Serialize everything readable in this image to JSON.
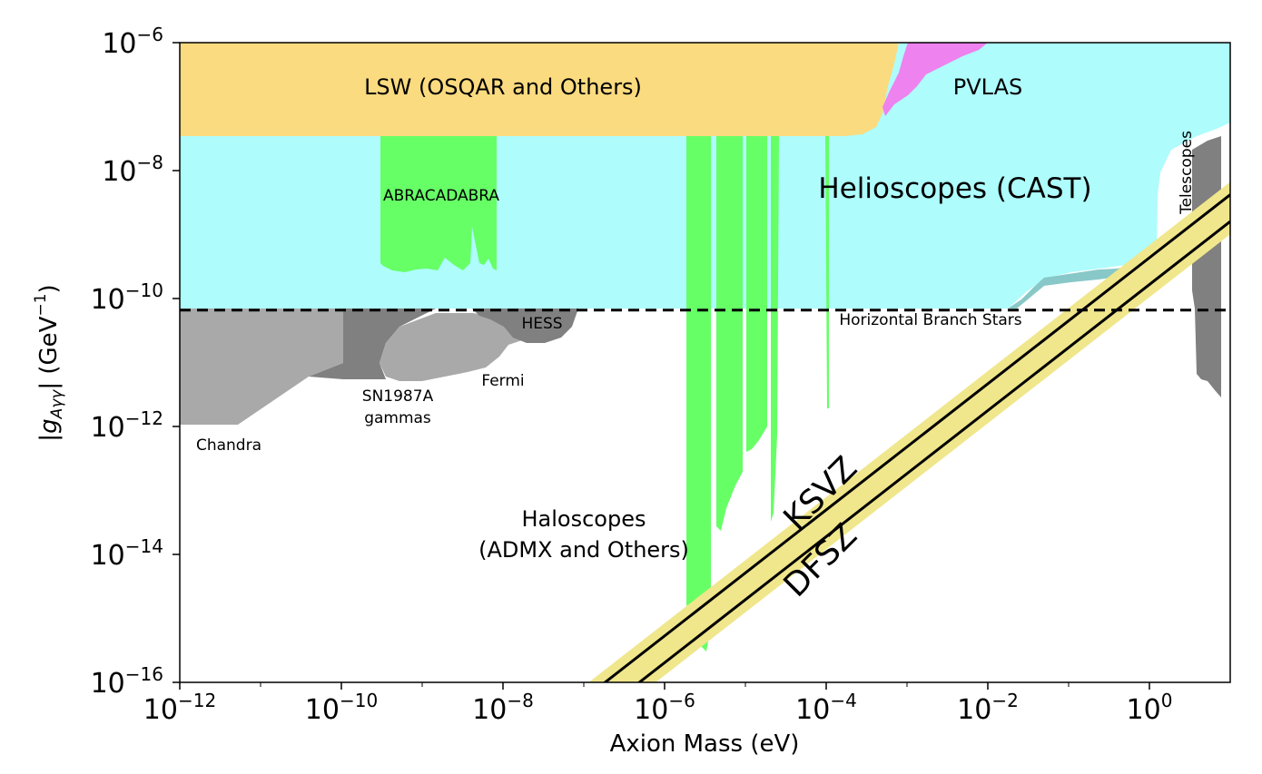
{
  "chart_data": {
    "type": "area",
    "xlabel": "Axion Mass (eV)",
    "ylabel": "|g_{Aγγ}| (GeV^{-1})",
    "xscale": "log",
    "yscale": "log",
    "xlim": [
      1e-12,
      10
    ],
    "ylim": [
      1e-16,
      1e-06
    ],
    "x_tick_labels": [
      "10^-12",
      "10^-10",
      "10^-8",
      "10^-6",
      "10^-4",
      "10^-2",
      "10^0"
    ],
    "y_tick_labels": [
      "10^-16",
      "10^-14",
      "10^-12",
      "10^-10",
      "10^-8",
      "10^-6"
    ],
    "colors": {
      "lsw": "#fbdb7f",
      "pvlas": "#ee82ee",
      "helioscopes": "#aefcfc",
      "helioscopes_edge": "#88c8c8",
      "haloscopes": "#66ff66",
      "astro_dark": "#808080",
      "astro_mid": "#909090",
      "astro_light": "#a9a9a9",
      "qcd_band": "#f0e68c",
      "hb_line": "#000000"
    },
    "regions": [
      {
        "name": "LSW (OSQAR and Others)",
        "x": [
          1e-12,
          0.0005
        ],
        "y": [
          3e-08,
          1e-06
        ]
      },
      {
        "name": "PVLAS",
        "x": [
          0.0006,
          0.01
        ],
        "y": [
          5e-08,
          1e-06
        ]
      },
      {
        "name": "Helioscopes (CAST)",
        "x": [
          1e-12,
          10
        ],
        "y": [
          6.6e-11,
          1e-06
        ]
      },
      {
        "name": "ABRACADABRA",
        "x": [
          3e-10,
          8e-09
        ],
        "y": [
          3e-10,
          3e-08
        ]
      },
      {
        "name": "Haloscopes (ADMX and Others)",
        "x": [
          2e-06,
          0.0001
        ],
        "y": [
          3e-16,
          3e-08
        ]
      },
      {
        "name": "HESS",
        "x": [
          1e-10,
          1e-08
        ],
        "y": [
          2e-11,
          6.6e-11
        ]
      },
      {
        "name": "Fermi",
        "x": [
          1e-10,
          1e-08
        ],
        "y": [
          5e-12,
          6.6e-11
        ]
      },
      {
        "name": "SN1987A gammas",
        "x": [
          1e-10,
          5e-09
        ],
        "y": [
          5e-12,
          6.6e-11
        ]
      },
      {
        "name": "Chandra",
        "x": [
          1e-12,
          1e-10
        ],
        "y": [
          1e-12,
          6.6e-11
        ]
      },
      {
        "name": "Telescopes",
        "x": [
          3,
          8
        ],
        "y": [
          3e-12,
          3e-08
        ]
      }
    ],
    "lines": [
      {
        "name": "Horizontal Branch Stars",
        "style": "dashed",
        "y": 6.6e-11
      },
      {
        "name": "KSVZ",
        "x": [
          1e-07,
          10
        ],
        "y": [
          5.5e-17,
          4.2e-09
        ]
      },
      {
        "name": "DFSZ",
        "x": [
          1e-07,
          10
        ],
        "y": [
          2.1e-17,
          1.6e-09
        ]
      }
    ],
    "annotations": {
      "lsw": "LSW (OSQAR and Others)",
      "pvlas": "PVLAS",
      "helioscopes": "Helioscopes (CAST)",
      "abracadabra": "ABRACADABRA",
      "telescopes": "Telescopes",
      "hb": "Horizontal Branch Stars",
      "hess": "HESS",
      "fermi": "Fermi",
      "sn1987a_line1": "SN1987A",
      "sn1987a_line2": "gammas",
      "chandra": "Chandra",
      "haloscopes_line1": "Haloscopes",
      "haloscopes_line2": "(ADMX and Others)",
      "ksvz": "KSVZ",
      "dfsz": "DFSZ"
    }
  }
}
